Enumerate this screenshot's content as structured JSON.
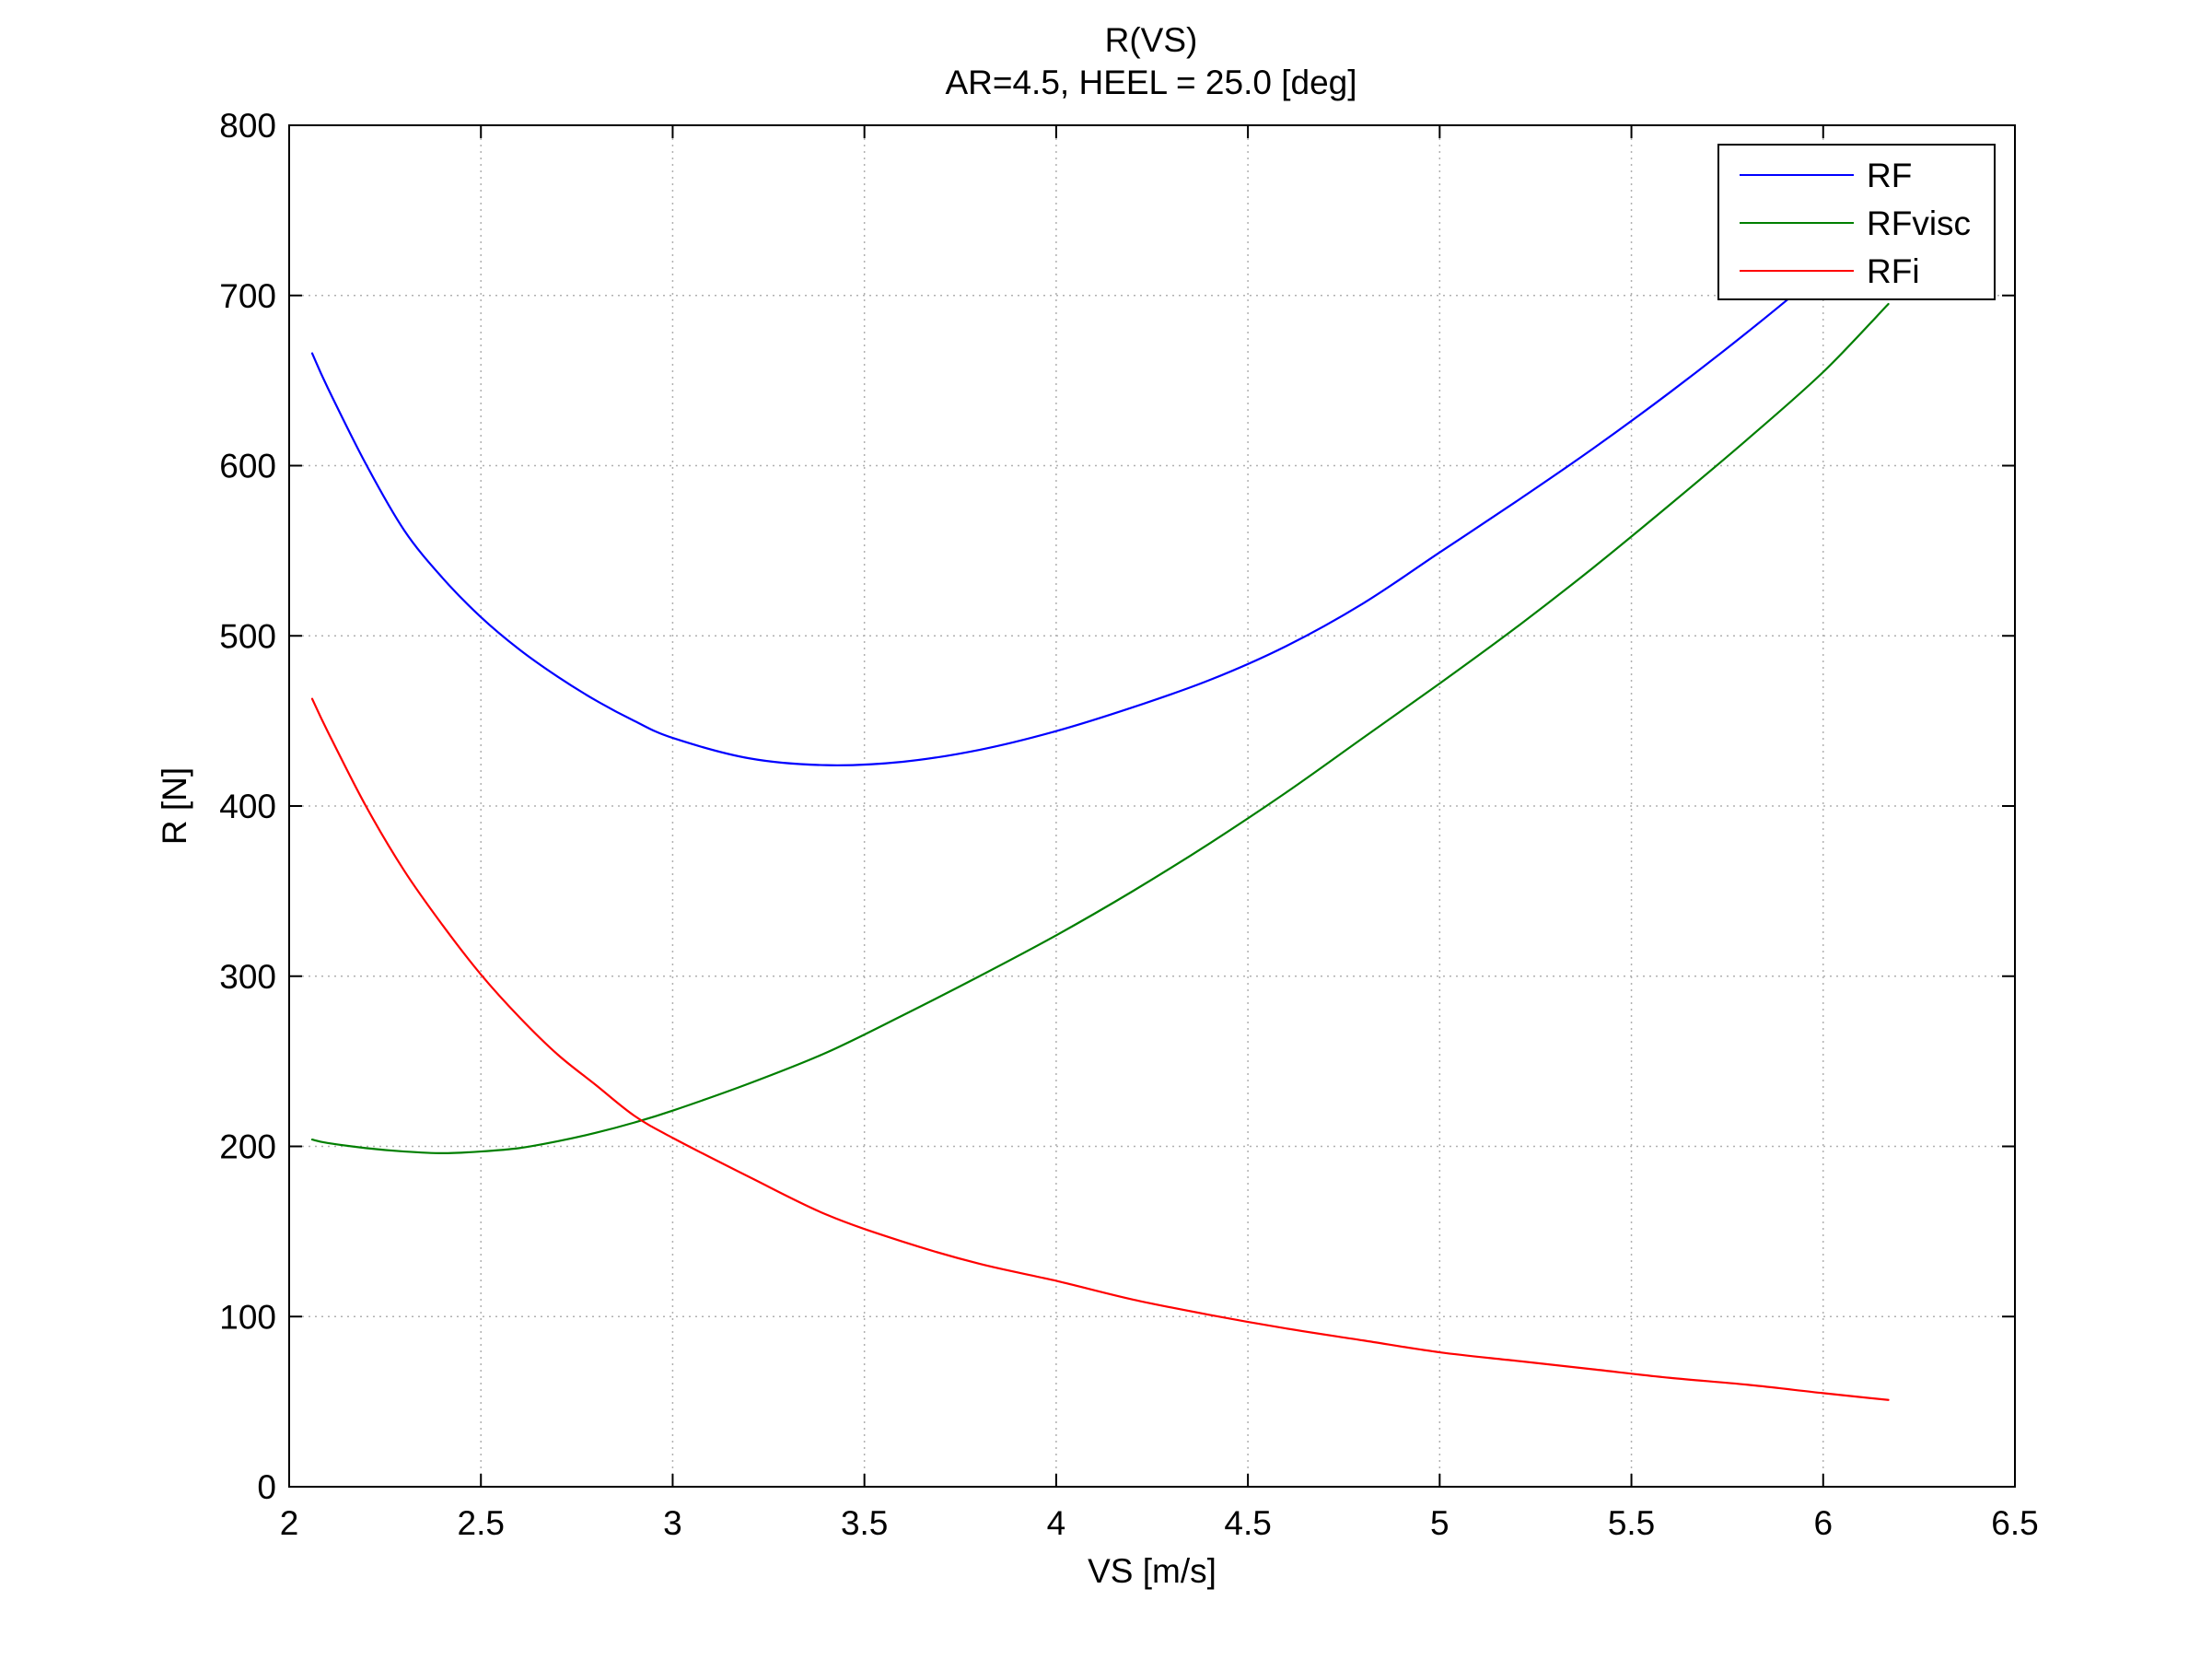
{
  "chart_data": {
    "type": "line",
    "title": "R(VS)",
    "subtitle": "AR=4.5, HEEL = 25.0 [deg]",
    "xlabel": "VS [m/s]",
    "ylabel": "R [N]",
    "xlim": [
      2,
      6.5
    ],
    "ylim": [
      0,
      800
    ],
    "xticks": [
      2,
      2.5,
      3,
      3.5,
      4,
      4.5,
      5,
      5.5,
      6,
      6.5
    ],
    "xtick_labels": [
      "2",
      "2.5",
      "3",
      "3.5",
      "4",
      "4.5",
      "5",
      "5.5",
      "6",
      "6.5"
    ],
    "yticks": [
      0,
      100,
      200,
      300,
      400,
      500,
      600,
      700,
      800
    ],
    "ytick_labels": [
      "0",
      "100",
      "200",
      "300",
      "400",
      "500",
      "600",
      "700",
      "800"
    ],
    "grid": true,
    "legend_position": "top-right",
    "x": [
      2.06,
      2.1,
      2.2,
      2.3,
      2.4,
      2.5,
      2.6,
      2.7,
      2.8,
      2.9,
      3.0,
      3.2,
      3.4,
      3.6,
      3.8,
      4.0,
      4.2,
      4.4,
      4.6,
      4.8,
      5.0,
      5.2,
      5.4,
      5.6,
      5.8,
      6.0,
      6.17
    ],
    "series": [
      {
        "name": "RF",
        "color": "#0000ff",
        "values": [
          666,
          646,
          601,
          562,
          534,
          511,
          492,
          476,
          462,
          450,
          440,
          428,
          424,
          426,
          433,
          444,
          458,
          474,
          494,
          519,
          549,
          579,
          610,
          643,
          678,
          715,
          748
        ]
      },
      {
        "name": "RFvisc",
        "color": "#007f00",
        "values": [
          204,
          202,
          199,
          197,
          196,
          197,
          199,
          203,
          208,
          214,
          221,
          237,
          255,
          277,
          300,
          324,
          350,
          378,
          408,
          440,
          472,
          505,
          540,
          577,
          615,
          655,
          695
        ]
      },
      {
        "name": "RFi",
        "color": "#ff0000",
        "values": [
          463,
          444,
          400,
          362,
          330,
          301,
          276,
          254,
          236,
          218,
          205,
          182,
          160,
          144,
          131,
          121,
          110,
          101,
          93,
          86,
          79,
          74,
          69,
          64,
          60,
          55,
          51
        ]
      }
    ]
  }
}
